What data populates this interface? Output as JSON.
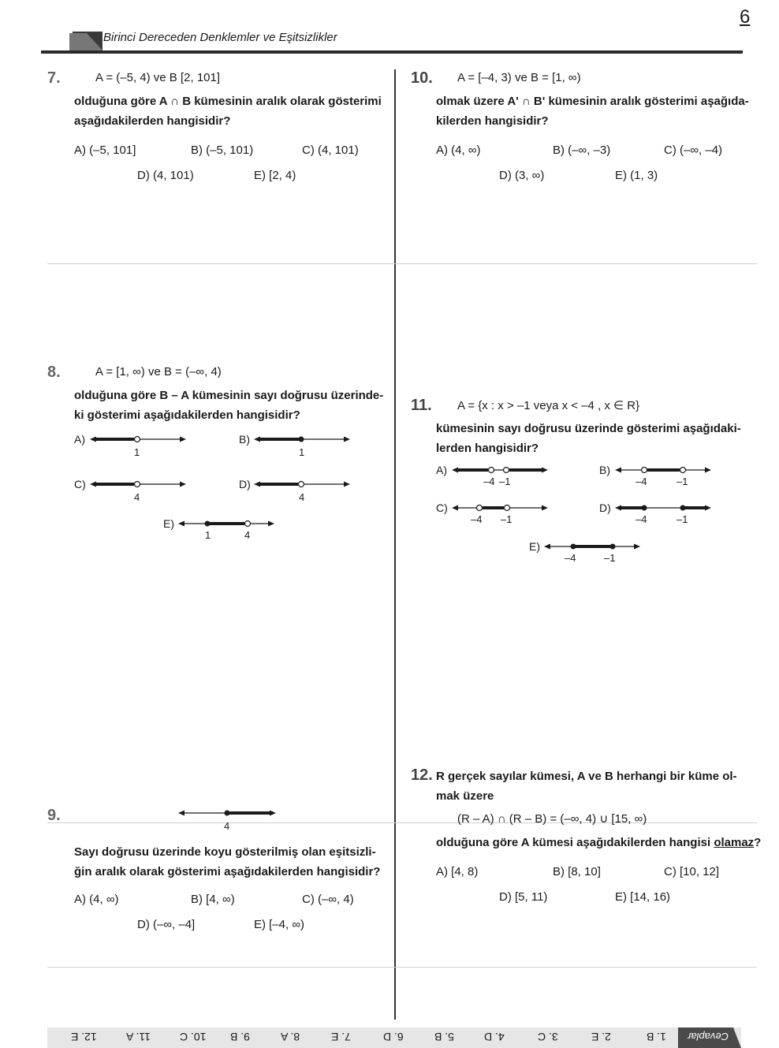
{
  "page_number": "6",
  "chapter_title": "Birinci Dereceden Denklemler ve Eşitsizlikler",
  "q7": {
    "num": "7.",
    "given": "A = (–5, 4)   ve   B [2, 101]",
    "stem1": "olduğuna göre A ∩ B kümesinin aralık olarak gösterimi",
    "stem2": "aşağıdakilerden hangisidir?",
    "A": "A) (–5, 101]",
    "B": "B) (–5, 101)",
    "C": "C) (4, 101)",
    "D": "D) (4, 101)",
    "E": "E) [2, 4)"
  },
  "q8": {
    "num": "8.",
    "given": "A = [1, ∞)  ve  B = (–∞, 4)",
    "stem1": "olduğuna göre B – A kümesinin sayı doğrusu üzerinde-",
    "stem2": "ki gösterimi aşağıdakilerden hangisidir?",
    "labels": [
      "A)",
      "B)",
      "C)",
      "D)",
      "E)"
    ],
    "ticks": {
      "A": "1",
      "B": "1",
      "C": "4",
      "D": "4",
      "E1": "1",
      "E2": "4"
    }
  },
  "q9": {
    "num": "9.",
    "tick": "4",
    "stem1": "Sayı doğrusu üzerinde koyu gösterilmiş olan eşitsizli-",
    "stem2": "ğin aralık olarak gösterimi aşağıdakilerden hangisidir?",
    "A": "A) (4, ∞)",
    "B": "B) [4, ∞)",
    "C": "C) (–∞, 4)",
    "D": "D) (–∞, –4]",
    "E": "E) [–4, ∞)"
  },
  "q10": {
    "num": "10.",
    "given": "A = [–4, 3)   ve   B = [1, ∞)",
    "stem1": "olmak üzere A' ∩ B' kümesinin aralık gösterimi aşağıda-",
    "stem2": "kilerden hangisidir?",
    "A": "A) (4, ∞)",
    "B": "B) (–∞, –3)",
    "C": "C) (–∞, –4)",
    "D": "D) (3, ∞)",
    "E": "E) (1, 3)"
  },
  "q11": {
    "num": "11.",
    "given": "A = {x : x > –1  veya  x < –4 , x ∈ R}",
    "stem1": "kümesinin sayı doğrusu üzerinde gösterimi aşağıdaki-",
    "stem2": "lerden hangisidir?",
    "labels": [
      "A)",
      "B)",
      "C)",
      "D)",
      "E)"
    ],
    "t1": "–4",
    "t2": "–1"
  },
  "q12": {
    "num": "12.",
    "stem1": "R gerçek sayılar kümesi, A ve B herhangi bir küme ol-",
    "stem2": "mak üzere",
    "given": "(R – A) ∩ (R – B) = (–∞, 4) ∪ [15, ∞)",
    "stem3a": "olduğuna göre A kümesi aşağıdakilerden hangisi ",
    "stem3b": "olamaz",
    "stem3c": "?",
    "A": "A) [4, 8)",
    "B": "B) [8, 10]",
    "C": "C) [10, 12]",
    "D": "D) [5, 11)",
    "E": "E) [14, 16)"
  },
  "answers": {
    "label": "Cevaplar",
    "items": [
      "1. B",
      "2. E",
      "3. C",
      "4. D",
      "5. B",
      "6. D",
      "7. E",
      "8. A",
      "9. B",
      "10. C",
      "11. A",
      "12. E"
    ]
  }
}
